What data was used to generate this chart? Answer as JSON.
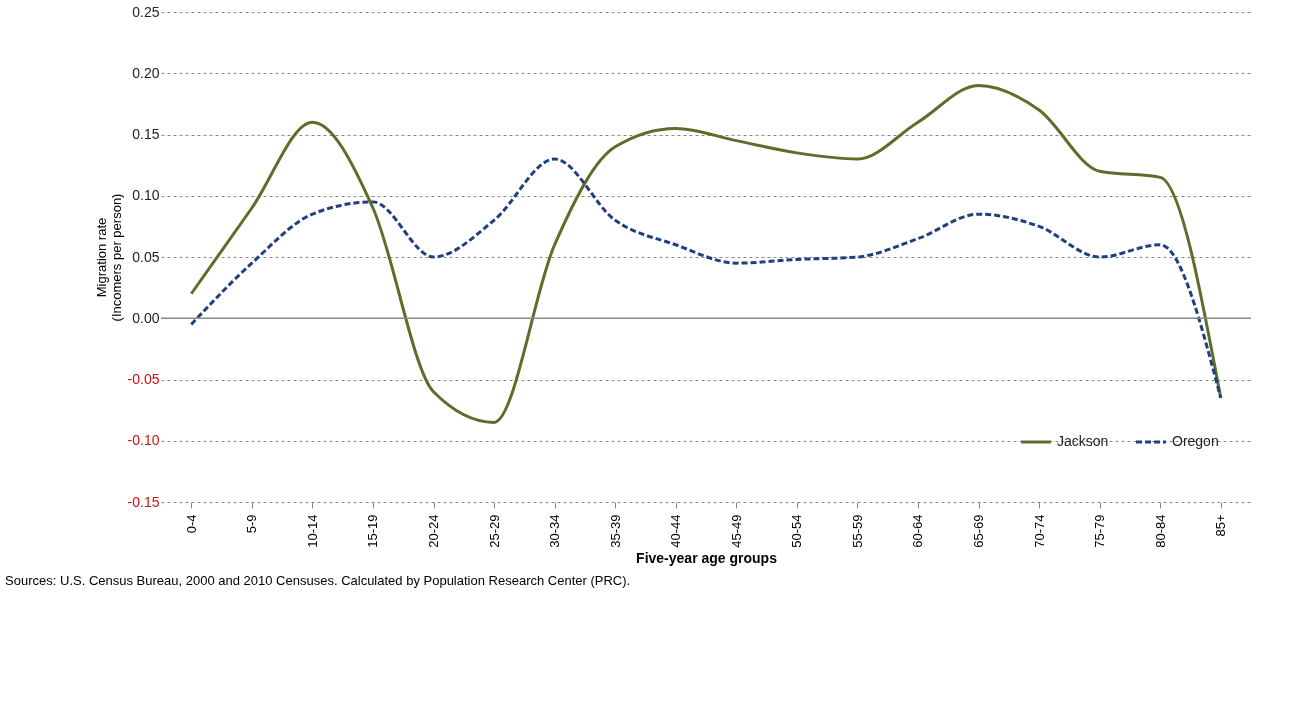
{
  "chart_data": {
    "type": "line",
    "xlabel": "Five-year age groups",
    "ylabel": "Migration rate\n(Incomers per person)",
    "categories": [
      "0-4",
      "5-9",
      "10-14",
      "15-19",
      "20-24",
      "25-29",
      "30-34",
      "35-39",
      "40-44",
      "45-49",
      "50-54",
      "55-59",
      "60-64",
      "65-69",
      "70-74",
      "75-79",
      "80-84",
      "85+"
    ],
    "series": [
      {
        "name": "Jackson",
        "color": "#5b6f2b",
        "line_style": "solid",
        "values": [
          0.02,
          0.09,
          0.16,
          0.09,
          -0.06,
          -0.085,
          0.06,
          0.14,
          0.155,
          0.145,
          0.135,
          0.13,
          0.16,
          0.19,
          0.17,
          0.12,
          0.115,
          -0.065
        ]
      },
      {
        "name": "Oregon",
        "color": "#1f3f7f",
        "line_style": "dashed",
        "values": [
          -0.005,
          0.045,
          0.085,
          0.095,
          0.05,
          0.08,
          0.13,
          0.08,
          0.06,
          0.045,
          0.048,
          0.05,
          0.065,
          0.085,
          0.075,
          0.05,
          0.06,
          -0.065
        ]
      }
    ],
    "ylim": [
      -0.15,
      0.25
    ],
    "yticks": [
      {
        "value": -0.15,
        "label": "-0.15"
      },
      {
        "value": -0.1,
        "label": "-0.10"
      },
      {
        "value": -0.05,
        "label": "-0.05"
      },
      {
        "value": 0,
        "label": "0.00"
      },
      {
        "value": 0.05,
        "label": "0.05"
      },
      {
        "value": 0.1,
        "label": "0.10"
      },
      {
        "value": 0.15,
        "label": "0.15"
      },
      {
        "value": 0.2,
        "label": "0.20"
      },
      {
        "value": 0.25,
        "label": "0.25"
      }
    ],
    "grid": "y",
    "legend": "bottom right",
    "marker": "none",
    "annotations": [
      "Sources: U.S. Census Bureau, 2000 and 2010 Censuses. Calculated by Population Research Center (PRC)."
    ]
  }
}
